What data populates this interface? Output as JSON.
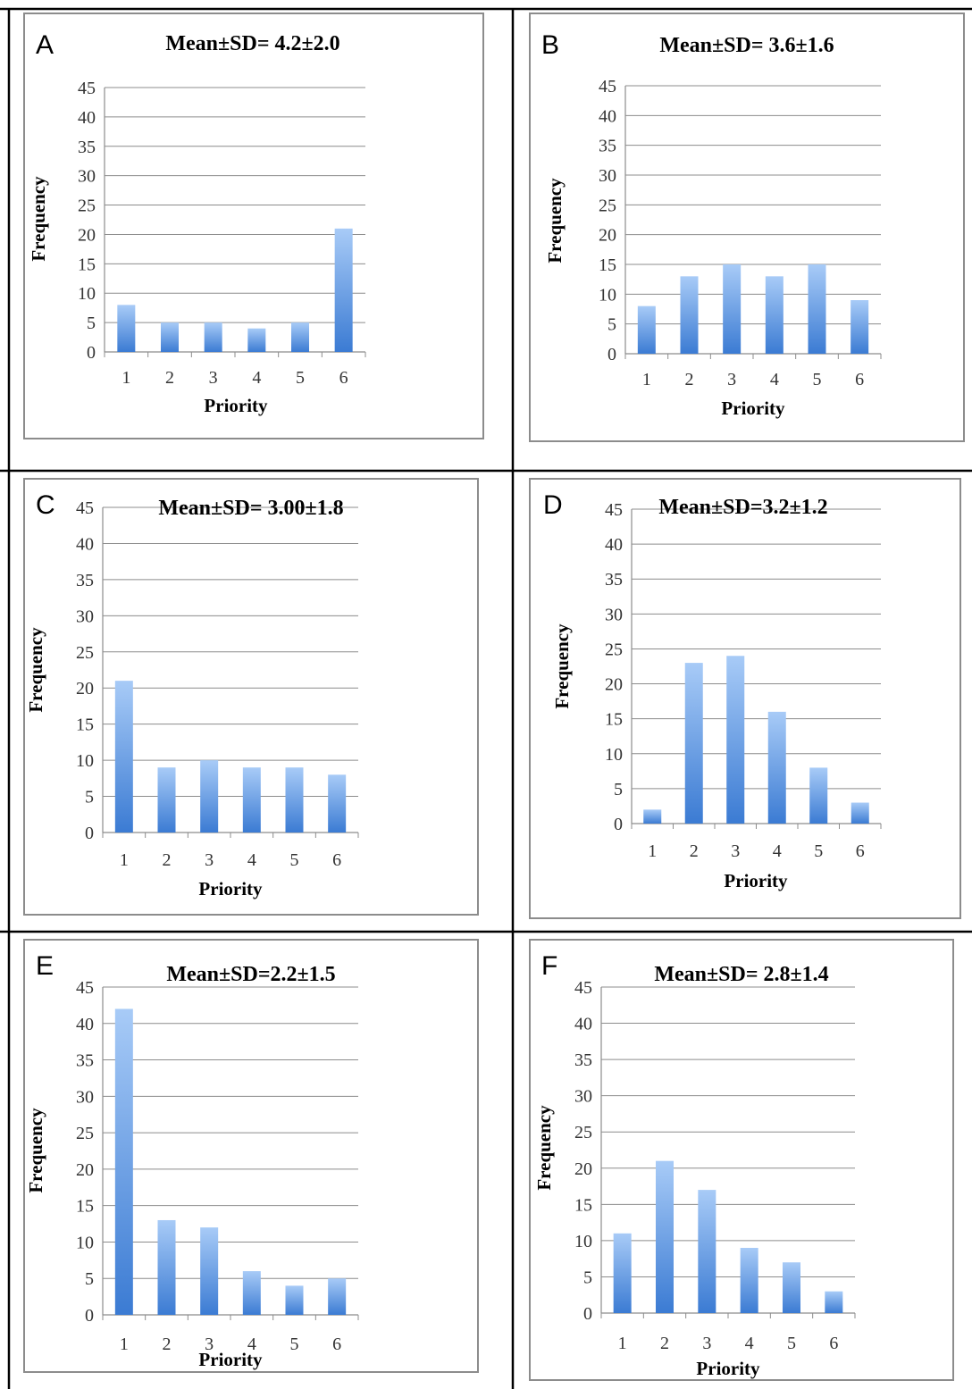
{
  "figure": {
    "colors": {
      "bar_top": "#a8cbf7",
      "bar_bottom": "#3b7bd3",
      "grid": "#8c8c8c",
      "frame": "#8c8c8c",
      "divider": "#000000"
    }
  },
  "chart_data": [
    {
      "panel": "A",
      "type": "bar",
      "title": "Mean±SD= 4.2±2.0",
      "xlabel": "Priority",
      "ylabel": "Frequency",
      "categories": [
        "1",
        "2",
        "3",
        "4",
        "5",
        "6"
      ],
      "values": [
        8,
        5,
        5,
        4,
        5,
        21
      ],
      "ylim": [
        0,
        45
      ],
      "yticks": [
        "0",
        "5",
        "10",
        "15",
        "20",
        "25",
        "30",
        "35",
        "40",
        "45"
      ],
      "grid": true
    },
    {
      "panel": "B",
      "type": "bar",
      "title": "Mean±SD= 3.6±1.6",
      "xlabel": "Priority",
      "ylabel": "Frequency",
      "categories": [
        "1",
        "2",
        "3",
        "4",
        "5",
        "6"
      ],
      "values": [
        8,
        13,
        15,
        13,
        15,
        9
      ],
      "ylim": [
        0,
        45
      ],
      "yticks": [
        "0",
        "5",
        "10",
        "15",
        "20",
        "25",
        "30",
        "35",
        "40",
        "45"
      ],
      "grid": true
    },
    {
      "panel": "C",
      "type": "bar",
      "title": "Mean±SD= 3.00±1.8",
      "xlabel": "Priority",
      "ylabel": "Frequency",
      "categories": [
        "1",
        "2",
        "3",
        "4",
        "5",
        "6"
      ],
      "values": [
        21,
        9,
        10,
        9,
        9,
        8
      ],
      "ylim": [
        0,
        45
      ],
      "yticks": [
        "0",
        "5",
        "10",
        "15",
        "20",
        "25",
        "30",
        "35",
        "40",
        "45"
      ],
      "grid": true
    },
    {
      "panel": "D",
      "type": "bar",
      "title": "Mean±SD=3.2±1.2",
      "xlabel": "Priority",
      "ylabel": "Frequency",
      "categories": [
        "1",
        "2",
        "3",
        "4",
        "5",
        "6"
      ],
      "values": [
        2,
        23,
        24,
        16,
        8,
        3
      ],
      "ylim": [
        0,
        45
      ],
      "yticks": [
        "0",
        "5",
        "10",
        "15",
        "20",
        "25",
        "30",
        "35",
        "40",
        "45"
      ],
      "grid": true
    },
    {
      "panel": "E",
      "type": "bar",
      "title": "Mean±SD=2.2±1.5",
      "xlabel": "Priority",
      "ylabel": "Frequency",
      "categories": [
        "1",
        "2",
        "3",
        "4",
        "5",
        "6"
      ],
      "values": [
        42,
        13,
        12,
        6,
        4,
        5
      ],
      "ylim": [
        0,
        45
      ],
      "yticks": [
        "0",
        "5",
        "10",
        "15",
        "20",
        "25",
        "30",
        "35",
        "40",
        "45"
      ],
      "grid": true
    },
    {
      "panel": "F",
      "type": "bar",
      "title": "Mean±SD= 2.8±1.4",
      "xlabel": "Priority",
      "ylabel": "Frequency",
      "categories": [
        "1",
        "2",
        "3",
        "4",
        "5",
        "6"
      ],
      "values": [
        11,
        21,
        17,
        9,
        7,
        3
      ],
      "ylim": [
        0,
        45
      ],
      "yticks": [
        "0",
        "5",
        "10",
        "15",
        "20",
        "25",
        "30",
        "35",
        "40",
        "45"
      ],
      "grid": true
    }
  ]
}
